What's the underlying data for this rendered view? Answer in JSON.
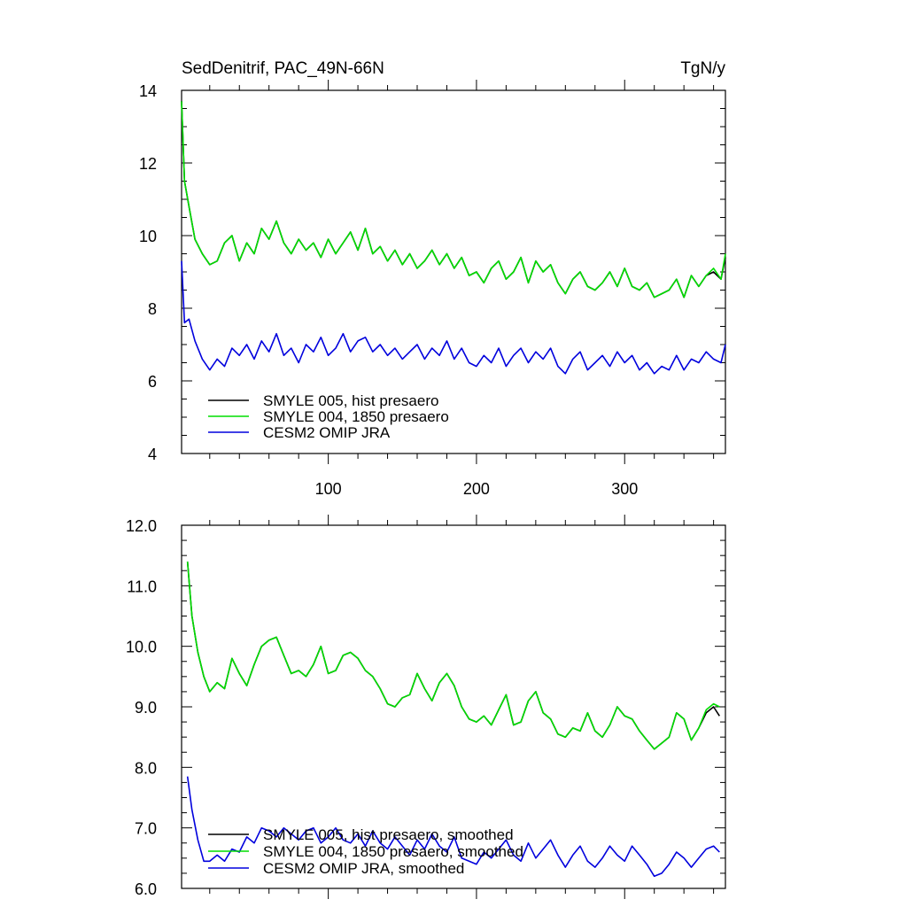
{
  "chart_data": [
    {
      "type": "line",
      "title": "SedDenitrif, PAC_49N-66N",
      "units": "TgN/y",
      "xlim": [
        1,
        368
      ],
      "ylim": [
        4,
        14
      ],
      "xticks": [
        100,
        200,
        300
      ],
      "yticks": [
        4,
        6,
        8,
        10,
        12,
        14
      ],
      "legend": "bottom-left",
      "series": [
        {
          "name": "SMYLE 005, hist presaero",
          "color": "#000000",
          "x": [
            1,
            3,
            6,
            10,
            15,
            20,
            25,
            30,
            35,
            40,
            45,
            50,
            55,
            60,
            65,
            70,
            75,
            80,
            85,
            90,
            95,
            100,
            105,
            110,
            115,
            120,
            125,
            130,
            135,
            140,
            145,
            150,
            155,
            160,
            165,
            170,
            175,
            180,
            185,
            190,
            195,
            200,
            205,
            210,
            215,
            220,
            225,
            230,
            235,
            240,
            245,
            250,
            255,
            260,
            265,
            270,
            275,
            280,
            285,
            290,
            295,
            300,
            305,
            310,
            315,
            320,
            325,
            330,
            335,
            340,
            345,
            350,
            355,
            360,
            365,
            368
          ],
          "y": [
            13.7,
            11.5,
            10.8,
            9.9,
            9.5,
            9.2,
            9.3,
            9.8,
            10.0,
            9.3,
            9.8,
            9.5,
            10.2,
            9.9,
            10.4,
            9.8,
            9.5,
            9.9,
            9.6,
            9.8,
            9.4,
            9.9,
            9.5,
            9.8,
            10.1,
            9.6,
            10.2,
            9.5,
            9.7,
            9.3,
            9.6,
            9.2,
            9.5,
            9.1,
            9.3,
            9.6,
            9.2,
            9.5,
            9.1,
            9.4,
            8.9,
            9.0,
            8.7,
            9.1,
            9.3,
            8.8,
            9.0,
            9.4,
            8.7,
            9.3,
            9.0,
            9.2,
            8.7,
            8.4,
            8.8,
            9.0,
            8.6,
            8.5,
            8.7,
            9.0,
            8.6,
            9.1,
            8.6,
            8.5,
            8.7,
            8.3,
            8.4,
            8.5,
            8.8,
            8.3,
            8.9,
            8.6,
            8.9,
            9.0,
            8.8,
            9.4
          ]
        },
        {
          "name": "SMYLE 004, 1850 presaero",
          "color": "#00dd00",
          "x": [
            1,
            3,
            6,
            10,
            15,
            20,
            25,
            30,
            35,
            40,
            45,
            50,
            55,
            60,
            65,
            70,
            75,
            80,
            85,
            90,
            95,
            100,
            105,
            110,
            115,
            120,
            125,
            130,
            135,
            140,
            145,
            150,
            155,
            160,
            165,
            170,
            175,
            180,
            185,
            190,
            195,
            200,
            205,
            210,
            215,
            220,
            225,
            230,
            235,
            240,
            245,
            250,
            255,
            260,
            265,
            270,
            275,
            280,
            285,
            290,
            295,
            300,
            305,
            310,
            315,
            320,
            325,
            330,
            335,
            340,
            345,
            350,
            355,
            360,
            365,
            368
          ],
          "y": [
            13.7,
            11.5,
            10.8,
            9.9,
            9.5,
            9.2,
            9.3,
            9.8,
            10.0,
            9.3,
            9.8,
            9.5,
            10.2,
            9.9,
            10.4,
            9.8,
            9.5,
            9.9,
            9.6,
            9.8,
            9.4,
            9.9,
            9.5,
            9.8,
            10.1,
            9.6,
            10.2,
            9.5,
            9.7,
            9.3,
            9.6,
            9.2,
            9.5,
            9.1,
            9.3,
            9.6,
            9.2,
            9.5,
            9.1,
            9.4,
            8.9,
            9.0,
            8.7,
            9.1,
            9.3,
            8.8,
            9.0,
            9.4,
            8.7,
            9.3,
            9.0,
            9.2,
            8.7,
            8.4,
            8.8,
            9.0,
            8.6,
            8.5,
            8.7,
            9.0,
            8.6,
            9.1,
            8.6,
            8.5,
            8.7,
            8.3,
            8.4,
            8.5,
            8.8,
            8.3,
            8.9,
            8.6,
            8.9,
            9.1,
            8.8,
            9.5
          ]
        },
        {
          "name": "CESM2 OMIP JRA",
          "color": "#0000dd",
          "x": [
            1,
            3,
            6,
            10,
            15,
            20,
            25,
            30,
            35,
            40,
            45,
            50,
            55,
            60,
            65,
            70,
            75,
            80,
            85,
            90,
            95,
            100,
            105,
            110,
            115,
            120,
            125,
            130,
            135,
            140,
            145,
            150,
            155,
            160,
            165,
            170,
            175,
            180,
            185,
            190,
            195,
            200,
            205,
            210,
            215,
            220,
            225,
            230,
            235,
            240,
            245,
            250,
            255,
            260,
            265,
            270,
            275,
            280,
            285,
            290,
            295,
            300,
            305,
            310,
            315,
            320,
            325,
            330,
            335,
            340,
            345,
            350,
            355,
            360,
            365,
            368
          ],
          "y": [
            9.3,
            7.6,
            7.7,
            7.1,
            6.6,
            6.3,
            6.6,
            6.4,
            6.9,
            6.7,
            7.0,
            6.6,
            7.1,
            6.8,
            7.3,
            6.7,
            6.9,
            6.5,
            7.0,
            6.8,
            7.2,
            6.7,
            6.9,
            7.3,
            6.8,
            7.1,
            7.2,
            6.8,
            7.0,
            6.7,
            6.9,
            6.6,
            6.8,
            7.0,
            6.6,
            6.9,
            6.7,
            7.1,
            6.6,
            6.9,
            6.5,
            6.4,
            6.7,
            6.5,
            6.9,
            6.4,
            6.7,
            6.9,
            6.5,
            6.8,
            6.6,
            6.9,
            6.4,
            6.2,
            6.6,
            6.8,
            6.3,
            6.5,
            6.7,
            6.4,
            6.8,
            6.5,
            6.7,
            6.3,
            6.5,
            6.2,
            6.4,
            6.3,
            6.7,
            6.3,
            6.6,
            6.5,
            6.8,
            6.6,
            6.5,
            7.0
          ]
        }
      ]
    },
    {
      "type": "line",
      "xlim": [
        1,
        368
      ],
      "ylim": [
        6.0,
        12.0
      ],
      "xticks": [
        100,
        200,
        300
      ],
      "yticks": [
        "6.0",
        "7.0",
        "8.0",
        "9.0",
        "10.0",
        "11.0",
        "12.0"
      ],
      "legend": "bottom-left",
      "series": [
        {
          "name": "SMYLE 005, hist presaero, smoothed",
          "color": "#000000",
          "x": [
            5,
            8,
            12,
            16,
            20,
            25,
            30,
            35,
            40,
            45,
            50,
            55,
            60,
            65,
            70,
            75,
            80,
            85,
            90,
            95,
            100,
            105,
            110,
            115,
            120,
            125,
            130,
            135,
            140,
            145,
            150,
            155,
            160,
            165,
            170,
            175,
            180,
            185,
            190,
            195,
            200,
            205,
            210,
            215,
            220,
            225,
            230,
            235,
            240,
            245,
            250,
            255,
            260,
            265,
            270,
            275,
            280,
            285,
            290,
            295,
            300,
            305,
            310,
            315,
            320,
            325,
            330,
            335,
            340,
            345,
            350,
            355,
            360,
            364
          ],
          "y": [
            11.4,
            10.5,
            9.9,
            9.5,
            9.25,
            9.4,
            9.3,
            9.8,
            9.55,
            9.35,
            9.7,
            10.0,
            10.1,
            10.15,
            9.85,
            9.55,
            9.6,
            9.5,
            9.7,
            10.0,
            9.55,
            9.6,
            9.85,
            9.9,
            9.8,
            9.6,
            9.5,
            9.3,
            9.05,
            9.0,
            9.15,
            9.2,
            9.55,
            9.3,
            9.1,
            9.4,
            9.55,
            9.35,
            9.0,
            8.8,
            8.75,
            8.85,
            8.7,
            8.95,
            9.2,
            8.7,
            8.75,
            9.1,
            9.25,
            8.9,
            8.8,
            8.55,
            8.5,
            8.65,
            8.6,
            8.9,
            8.6,
            8.5,
            8.7,
            9.0,
            8.85,
            8.8,
            8.6,
            8.45,
            8.3,
            8.4,
            8.5,
            8.9,
            8.8,
            8.45,
            8.65,
            8.9,
            9.0,
            8.85
          ]
        },
        {
          "name": "SMYLE 004, 1850 presaero, smoothed",
          "color": "#00dd00",
          "x": [
            5,
            8,
            12,
            16,
            20,
            25,
            30,
            35,
            40,
            45,
            50,
            55,
            60,
            65,
            70,
            75,
            80,
            85,
            90,
            95,
            100,
            105,
            110,
            115,
            120,
            125,
            130,
            135,
            140,
            145,
            150,
            155,
            160,
            165,
            170,
            175,
            180,
            185,
            190,
            195,
            200,
            205,
            210,
            215,
            220,
            225,
            230,
            235,
            240,
            245,
            250,
            255,
            260,
            265,
            270,
            275,
            280,
            285,
            290,
            295,
            300,
            305,
            310,
            315,
            320,
            325,
            330,
            335,
            340,
            345,
            350,
            355,
            360,
            364
          ],
          "y": [
            11.4,
            10.5,
            9.9,
            9.5,
            9.25,
            9.4,
            9.3,
            9.8,
            9.55,
            9.35,
            9.7,
            10.0,
            10.1,
            10.15,
            9.85,
            9.55,
            9.6,
            9.5,
            9.7,
            10.0,
            9.55,
            9.6,
            9.85,
            9.9,
            9.8,
            9.6,
            9.5,
            9.3,
            9.05,
            9.0,
            9.15,
            9.2,
            9.55,
            9.3,
            9.1,
            9.4,
            9.55,
            9.35,
            9.0,
            8.8,
            8.75,
            8.85,
            8.7,
            8.95,
            9.2,
            8.7,
            8.75,
            9.1,
            9.25,
            8.9,
            8.8,
            8.55,
            8.5,
            8.65,
            8.6,
            8.9,
            8.6,
            8.5,
            8.7,
            9.0,
            8.85,
            8.8,
            8.6,
            8.45,
            8.3,
            8.4,
            8.5,
            8.9,
            8.8,
            8.45,
            8.65,
            8.95,
            9.05,
            9.0
          ]
        },
        {
          "name": "CESM2 OMIP JRA, smoothed",
          "color": "#0000dd",
          "x": [
            5,
            8,
            12,
            16,
            20,
            25,
            30,
            35,
            40,
            45,
            50,
            55,
            60,
            65,
            70,
            75,
            80,
            85,
            90,
            95,
            100,
            105,
            110,
            115,
            120,
            125,
            130,
            135,
            140,
            145,
            150,
            155,
            160,
            165,
            170,
            175,
            180,
            185,
            190,
            195,
            200,
            205,
            210,
            215,
            220,
            225,
            230,
            235,
            240,
            245,
            250,
            255,
            260,
            265,
            270,
            275,
            280,
            285,
            290,
            295,
            300,
            305,
            310,
            315,
            320,
            325,
            330,
            335,
            340,
            345,
            350,
            355,
            360,
            364
          ],
          "y": [
            7.85,
            7.3,
            6.8,
            6.45,
            6.45,
            6.55,
            6.45,
            6.65,
            6.6,
            6.85,
            6.75,
            7.0,
            6.95,
            6.85,
            7.0,
            6.9,
            6.8,
            6.95,
            7.0,
            6.75,
            6.85,
            7.0,
            6.8,
            6.75,
            6.9,
            6.7,
            6.95,
            6.75,
            6.65,
            6.85,
            6.7,
            6.55,
            6.8,
            6.65,
            6.9,
            6.7,
            6.6,
            6.85,
            6.5,
            6.45,
            6.4,
            6.6,
            6.5,
            6.65,
            6.8,
            6.55,
            6.45,
            6.75,
            6.5,
            6.65,
            6.8,
            6.55,
            6.35,
            6.55,
            6.7,
            6.45,
            6.35,
            6.5,
            6.7,
            6.55,
            6.45,
            6.7,
            6.55,
            6.4,
            6.2,
            6.25,
            6.4,
            6.6,
            6.5,
            6.35,
            6.5,
            6.65,
            6.7,
            6.6
          ]
        }
      ]
    }
  ]
}
